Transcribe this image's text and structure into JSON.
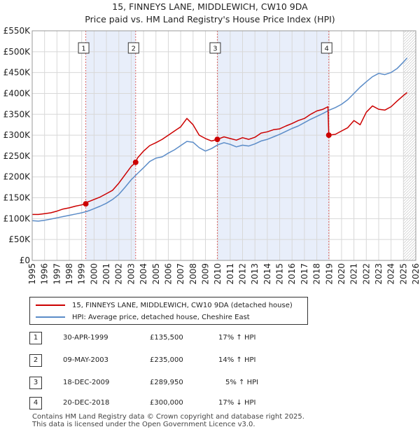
{
  "title_line1": "15, FINNEYS LANE, MIDDLEWICH, CW10 9DA",
  "title_line2": "Price paid vs. HM Land Registry's House Price Index (HPI)",
  "colors": {
    "property": "#cc0000",
    "hpi": "#5b8cc8",
    "shade": "#e8eefa",
    "grid": "#d8d8d8",
    "marker_line": "#dd6666"
  },
  "legend": {
    "property": "15, FINNEYS LANE, MIDDLEWICH, CW10 9DA (detached house)",
    "hpi": "HPI: Average price, detached house, Cheshire East"
  },
  "sales": [
    {
      "num": "1",
      "date": "30-APR-1999",
      "price": "£135,500",
      "hpi": "17% ↑ HPI"
    },
    {
      "num": "2",
      "date": "09-MAY-2003",
      "price": "£235,000",
      "hpi": "14% ↑ HPI"
    },
    {
      "num": "3",
      "date": "18-DEC-2009",
      "price": "£289,950",
      "hpi": "5% ↑ HPI"
    },
    {
      "num": "4",
      "date": "20-DEC-2018",
      "price": "£300,000",
      "hpi": "17% ↓ HPI"
    }
  ],
  "footer": {
    "line1": "Contains HM Land Registry data © Crown copyright and database right 2025.",
    "line2": "This data is licensed under the Open Government Licence v3.0."
  },
  "chart_data": {
    "type": "line",
    "title": "15, FINNEYS LANE, MIDDLEWICH, CW10 9DA",
    "subtitle": "Price paid vs. HM Land Registry's House Price Index (HPI)",
    "xlim": [
      1995,
      2026
    ],
    "ylim": [
      0,
      550000
    ],
    "x_ticks": [
      1995,
      1996,
      1997,
      1998,
      1999,
      2000,
      2001,
      2002,
      2003,
      2004,
      2005,
      2006,
      2007,
      2008,
      2009,
      2010,
      2011,
      2012,
      2013,
      2014,
      2015,
      2016,
      2017,
      2018,
      2019,
      2020,
      2021,
      2022,
      2023,
      2024,
      2025,
      2026
    ],
    "y_ticks": [
      {
        "value": 0,
        "label": "£0"
      },
      {
        "value": 50000,
        "label": "£50K"
      },
      {
        "value": 100000,
        "label": "£100K"
      },
      {
        "value": 150000,
        "label": "£150K"
      },
      {
        "value": 200000,
        "label": "£200K"
      },
      {
        "value": 250000,
        "label": "£250K"
      },
      {
        "value": 300000,
        "label": "£300K"
      },
      {
        "value": 350000,
        "label": "£350K"
      },
      {
        "value": 400000,
        "label": "£400K"
      },
      {
        "value": 450000,
        "label": "£450K"
      },
      {
        "value": 500000,
        "label": "£500K"
      },
      {
        "value": 550000,
        "label": "£550K"
      }
    ],
    "grid": true,
    "shaded_ranges": [
      [
        1999.33,
        2003.36
      ],
      [
        2009.96,
        2018.97
      ]
    ],
    "future_hatch_from": 2025.0,
    "sale_markers": [
      {
        "num": "1",
        "x": 1999.33,
        "y": 135500
      },
      {
        "num": "2",
        "x": 2003.36,
        "y": 235000
      },
      {
        "num": "3",
        "x": 2009.96,
        "y": 289950
      },
      {
        "num": "4",
        "x": 2018.97,
        "y": 300000
      }
    ],
    "series": [
      {
        "name": "15, FINNEYS LANE, MIDDLEWICH, CW10 9DA (detached house)",
        "x": [
          1995.0,
          1995.5,
          1996.0,
          1996.5,
          1997.0,
          1997.5,
          1998.0,
          1998.5,
          1999.0,
          1999.33,
          1999.5,
          2000.0,
          2000.5,
          2001.0,
          2001.5,
          2002.0,
          2002.5,
          2003.0,
          2003.36,
          2003.5,
          2004.0,
          2004.5,
          2005.0,
          2005.5,
          2006.0,
          2006.5,
          2007.0,
          2007.5,
          2008.0,
          2008.5,
          2009.0,
          2009.5,
          2009.96,
          2010.5,
          2011.0,
          2011.5,
          2012.0,
          2012.5,
          2013.0,
          2013.5,
          2014.0,
          2014.5,
          2015.0,
          2015.5,
          2016.0,
          2016.5,
          2017.0,
          2017.5,
          2018.0,
          2018.5,
          2018.9,
          2018.97,
          2019.5,
          2020.0,
          2020.5,
          2021.0,
          2021.5,
          2022.0,
          2022.5,
          2023.0,
          2023.5,
          2024.0,
          2024.5,
          2025.0,
          2025.3
        ],
        "y": [
          110000,
          110000,
          112000,
          114000,
          118000,
          123000,
          126000,
          130000,
          133000,
          135500,
          140000,
          146000,
          152000,
          160000,
          168000,
          185000,
          205000,
          225000,
          235000,
          245000,
          262000,
          275000,
          282000,
          290000,
          300000,
          310000,
          320000,
          340000,
          325000,
          300000,
          292000,
          286000,
          289950,
          296000,
          292000,
          288000,
          294000,
          290000,
          295000,
          305000,
          308000,
          313000,
          315000,
          322000,
          328000,
          335000,
          340000,
          350000,
          358000,
          362000,
          368000,
          300000,
          302000,
          310000,
          318000,
          335000,
          325000,
          355000,
          370000,
          362000,
          360000,
          368000,
          382000,
          395000,
          402000
        ]
      },
      {
        "name": "HPI: Average price, detached house, Cheshire East",
        "x": [
          1995.0,
          1995.5,
          1996.0,
          1996.5,
          1997.0,
          1997.5,
          1998.0,
          1998.5,
          1999.0,
          1999.5,
          2000.0,
          2000.5,
          2001.0,
          2001.5,
          2002.0,
          2002.5,
          2003.0,
          2003.5,
          2004.0,
          2004.5,
          2005.0,
          2005.5,
          2006.0,
          2006.5,
          2007.0,
          2007.5,
          2008.0,
          2008.5,
          2009.0,
          2009.5,
          2010.0,
          2010.5,
          2011.0,
          2011.5,
          2012.0,
          2012.5,
          2013.0,
          2013.5,
          2014.0,
          2014.5,
          2015.0,
          2015.5,
          2016.0,
          2016.5,
          2017.0,
          2017.5,
          2018.0,
          2018.5,
          2019.0,
          2019.5,
          2020.0,
          2020.5,
          2021.0,
          2021.5,
          2022.0,
          2022.5,
          2023.0,
          2023.5,
          2024.0,
          2024.5,
          2025.0,
          2025.3
        ],
        "y": [
          95000,
          94000,
          96000,
          99000,
          102000,
          105000,
          108000,
          111000,
          114000,
          118000,
          124000,
          130000,
          137000,
          146000,
          158000,
          175000,
          193000,
          208000,
          222000,
          237000,
          245000,
          248000,
          257000,
          265000,
          275000,
          285000,
          283000,
          270000,
          262000,
          268000,
          277000,
          282000,
          278000,
          272000,
          276000,
          274000,
          279000,
          286000,
          290000,
          296000,
          302000,
          309000,
          316000,
          322000,
          330000,
          338000,
          345000,
          352000,
          360000,
          366000,
          374000,
          385000,
          400000,
          415000,
          428000,
          440000,
          448000,
          445000,
          450000,
          460000,
          475000,
          485000
        ]
      }
    ]
  }
}
